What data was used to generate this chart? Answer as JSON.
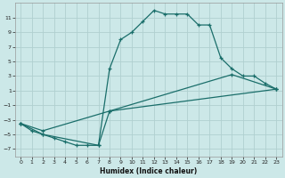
{
  "xlabel": "Humidex (Indice chaleur)",
  "xlim": [
    -0.5,
    23.5
  ],
  "ylim": [
    -8,
    13
  ],
  "xticks": [
    0,
    1,
    2,
    3,
    4,
    5,
    6,
    7,
    8,
    9,
    10,
    11,
    12,
    13,
    14,
    15,
    16,
    17,
    18,
    19,
    20,
    21,
    22,
    23
  ],
  "yticks": [
    -7,
    -5,
    -3,
    -1,
    1,
    3,
    5,
    7,
    9,
    11
  ],
  "bg_color": "#cce8e8",
  "grid_color": "#b0d0d0",
  "line_color": "#1a6e6a",
  "line1_x": [
    0,
    1,
    2,
    3,
    4,
    5,
    6,
    7,
    8,
    9,
    10,
    11,
    12,
    13,
    14,
    15,
    16,
    17,
    18,
    19,
    20,
    21,
    22,
    23
  ],
  "line1_y": [
    -3.5,
    -4.5,
    -5.0,
    -5.5,
    -6.0,
    -6.5,
    -6.5,
    -6.5,
    4.0,
    8.0,
    9.0,
    10.5,
    12.0,
    11.5,
    11.5,
    11.5,
    10.0,
    10.0,
    5.5,
    4.0,
    3.0,
    3.0,
    2.0,
    1.2
  ],
  "line2_x": [
    0,
    2,
    7,
    8,
    23
  ],
  "line2_y": [
    -3.5,
    -5.0,
    -6.5,
    -1.8,
    1.2
  ],
  "line3_x": [
    0,
    2,
    8,
    19,
    23
  ],
  "line3_y": [
    -3.5,
    -4.5,
    -1.8,
    3.2,
    1.2
  ]
}
